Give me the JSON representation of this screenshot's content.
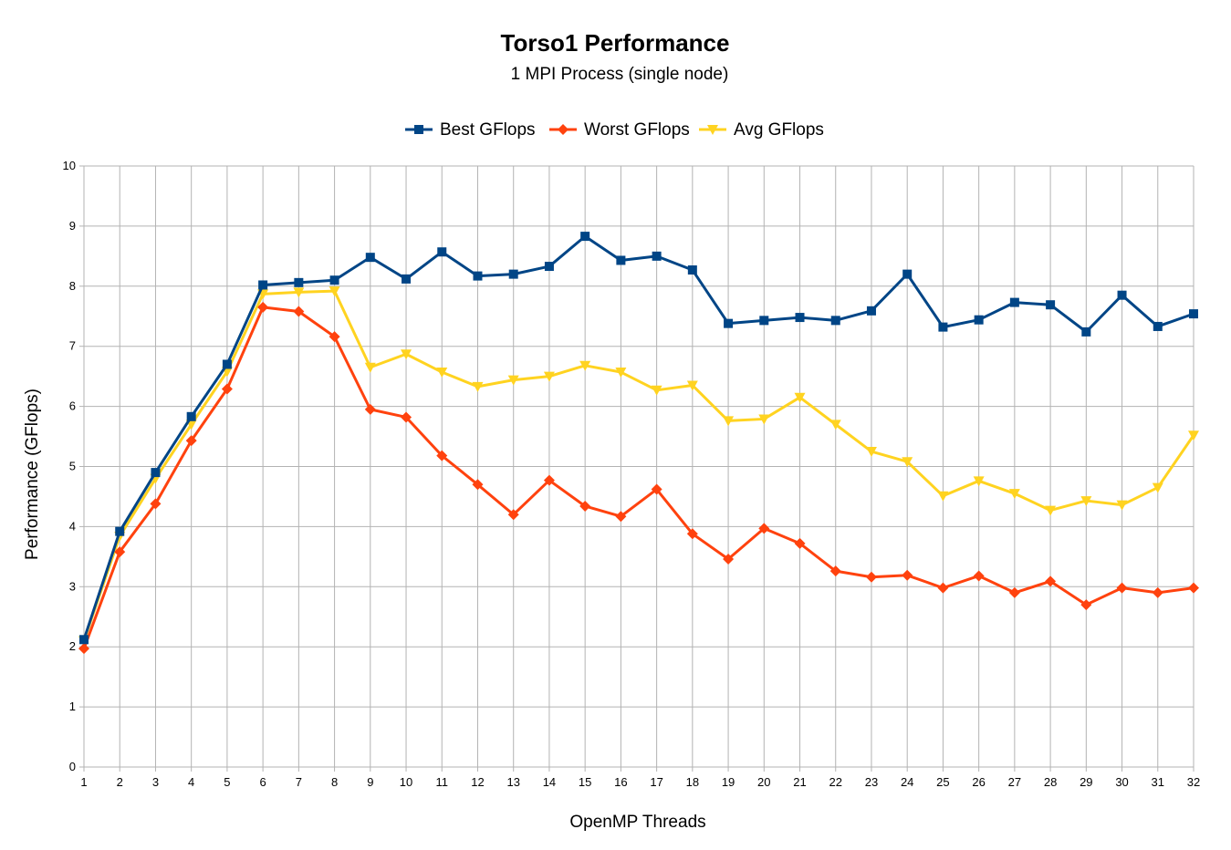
{
  "chart_data": {
    "type": "line",
    "title": "Torso1 Performance",
    "subtitle": "1 MPI Process (single node)",
    "xlabel": "OpenMP Threads",
    "ylabel": "Performance (GFlops)",
    "ylim": [
      0,
      10
    ],
    "yticks": [
      "0",
      "1",
      "2",
      "3",
      "4",
      "5",
      "6",
      "7",
      "8",
      "9",
      "10"
    ],
    "grid": true,
    "legend_position": "top",
    "categories": [
      "1",
      "2",
      "3",
      "4",
      "5",
      "6",
      "7",
      "8",
      "9",
      "10",
      "11",
      "12",
      "13",
      "14",
      "15",
      "16",
      "17",
      "18",
      "19",
      "20",
      "21",
      "22",
      "23",
      "24",
      "25",
      "26",
      "27",
      "28",
      "29",
      "30",
      "31",
      "32"
    ],
    "series": [
      {
        "name": "Best GFlops",
        "color": "#004586",
        "marker": "square",
        "values": [
          2.12,
          3.92,
          4.9,
          5.83,
          6.7,
          8.02,
          8.06,
          8.1,
          8.48,
          8.12,
          8.57,
          8.17,
          8.2,
          8.33,
          8.83,
          8.43,
          8.5,
          8.27,
          7.38,
          7.43,
          7.48,
          7.43,
          7.59,
          8.2,
          7.32,
          7.44,
          7.73,
          7.69,
          7.24,
          7.85,
          7.33,
          7.54
        ]
      },
      {
        "name": "Worst GFlops",
        "color": "#ff420e",
        "marker": "diamond",
        "values": [
          1.97,
          3.58,
          4.38,
          5.43,
          6.29,
          7.65,
          7.58,
          7.16,
          5.95,
          5.82,
          5.18,
          4.7,
          4.2,
          4.77,
          4.34,
          4.17,
          4.62,
          3.88,
          3.46,
          3.97,
          3.72,
          3.26,
          3.16,
          3.19,
          2.98,
          3.18,
          2.9,
          3.09,
          2.7,
          2.98,
          2.9,
          2.98
        ]
      },
      {
        "name": "Avg GFlops",
        "color": "#ffd320",
        "marker": "triangle-down",
        "values": [
          2.1,
          3.84,
          4.8,
          5.7,
          6.58,
          7.87,
          7.9,
          7.92,
          6.65,
          6.87,
          6.57,
          6.33,
          6.44,
          6.5,
          6.68,
          6.57,
          6.27,
          6.35,
          5.76,
          5.79,
          6.15,
          5.7,
          5.25,
          5.08,
          4.51,
          4.76,
          4.55,
          4.27,
          4.43,
          4.36,
          4.65,
          5.52
        ]
      }
    ]
  }
}
